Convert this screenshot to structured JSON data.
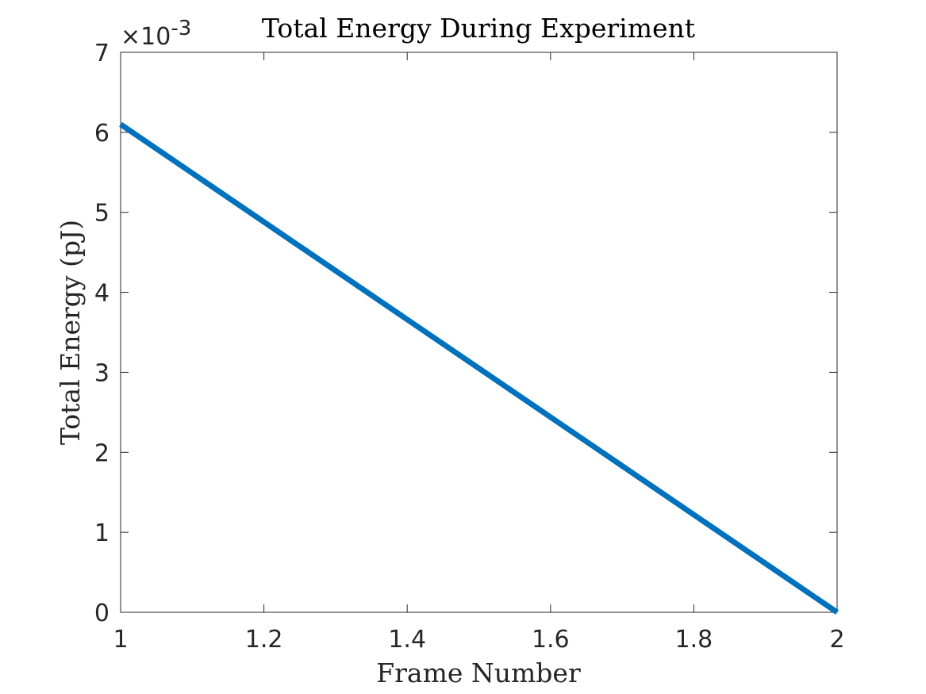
{
  "chart_data": {
    "type": "line",
    "title": "Total Energy During Experiment",
    "xlabel": "Frame Number",
    "ylabel": "Total Energy (pJ)",
    "xlim": [
      1,
      2
    ],
    "ylim": [
      0,
      0.007
    ],
    "x_ticks": [
      1,
      1.2,
      1.4,
      1.6,
      1.8,
      2
    ],
    "x_tick_labels": [
      "1",
      "1.2",
      "1.4",
      "1.6",
      "1.8",
      "2"
    ],
    "y_ticks": [
      0,
      0.001,
      0.002,
      0.003,
      0.004,
      0.005,
      0.006,
      0.007
    ],
    "y_tick_labels": [
      "0",
      "1",
      "2",
      "3",
      "4",
      "5",
      "6",
      "7"
    ],
    "y_exponent_label": "×10",
    "y_exponent": "-3",
    "grid": false,
    "series": [
      {
        "x": [
          1,
          2
        ],
        "values": [
          0.0061,
          0.0
        ],
        "color": "#0072BD"
      }
    ]
  }
}
